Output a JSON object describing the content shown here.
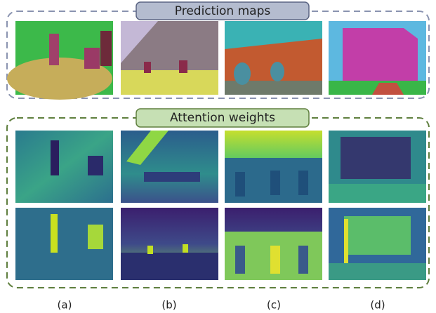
{
  "header": {
    "title": "Prediction maps"
  },
  "section": {
    "title": "Attention weights"
  },
  "captions": [
    "(a)",
    "(b)",
    "(c)",
    "(d)"
  ]
}
